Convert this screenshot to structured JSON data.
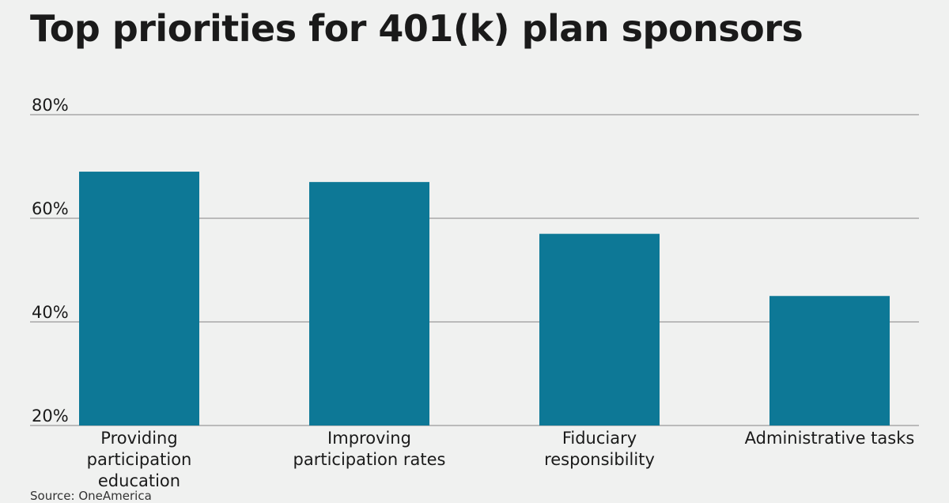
{
  "title": "Top priorities for 401(k) plan sponsors",
  "source": "Source: OneAmerica",
  "colors": {
    "bar": "#0d7896",
    "grid": "#999999",
    "background": "#f0f1f0"
  },
  "chart_data": {
    "type": "bar",
    "title": "Top priorities for 401(k) plan sponsors",
    "xlabel": "",
    "ylabel": "",
    "categories": [
      "Providing participation education",
      "Improving participation rates",
      "Fiduciary responsibility",
      "Administrative tasks"
    ],
    "category_lines": [
      [
        "Providing",
        "participation",
        "education"
      ],
      [
        "Improving",
        "participation rates"
      ],
      [
        "Fiduciary",
        "responsibility"
      ],
      [
        "Administrative tasks"
      ]
    ],
    "values": [
      69,
      67,
      57,
      45
    ],
    "ylim": [
      20,
      80
    ],
    "yticks": [
      20,
      40,
      60,
      80
    ],
    "ytick_labels": [
      "20%",
      "40%",
      "60%",
      "80%"
    ],
    "grid": true,
    "legend": "none"
  }
}
